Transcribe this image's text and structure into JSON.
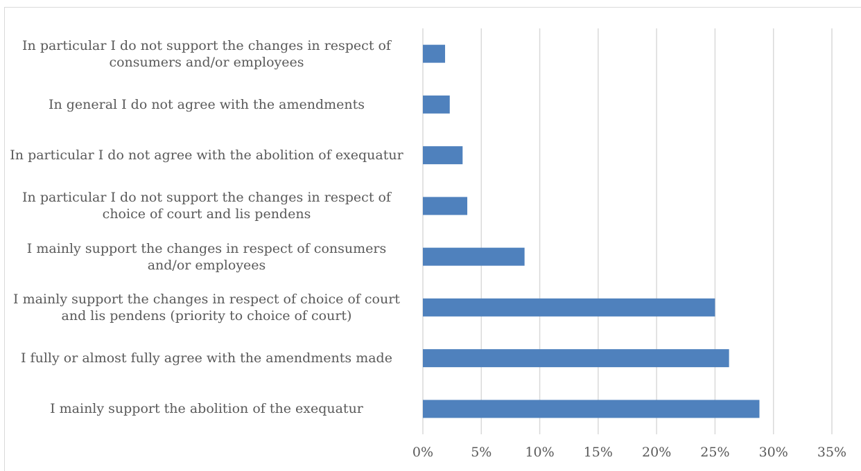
{
  "chart_data": {
    "type": "bar",
    "orientation": "horizontal",
    "categories": [
      "In particular I do not support the changes in respect of consumers and/or employees",
      "In general I do not agree with the amendments",
      "In particular I do not agree with the abolition of exequatur",
      "In particular I do not support the changes in respect of choice of court and lis pendens",
      "I mainly support the changes in respect of consumers and/or employees",
      "I mainly support the changes in respect of choice of court and lis pendens (priority to choice of court)",
      "I fully or almost fully agree with the amendments made",
      "I mainly support the abolition of the exequatur"
    ],
    "values": [
      1.9,
      2.3,
      3.4,
      3.8,
      8.7,
      25.0,
      26.2,
      28.8
    ],
    "xlim": [
      0,
      35
    ],
    "x_ticks": [
      "0%",
      "5%",
      "10%",
      "15%",
      "20%",
      "25%",
      "30%",
      "35%"
    ],
    "title": "",
    "xlabel": "",
    "ylabel": "",
    "grid": "vertical",
    "bar_color": "#4f81bd",
    "grid_color": "#d9d9d9"
  }
}
